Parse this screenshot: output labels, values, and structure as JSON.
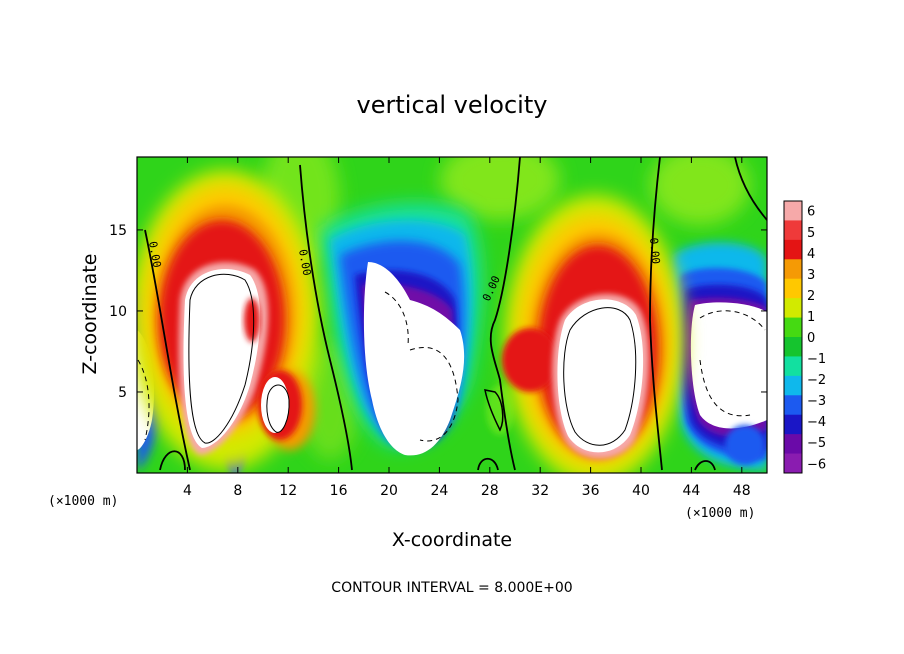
{
  "chart_data": {
    "type": "heatmap",
    "title": "vertical velocity",
    "xlabel": "X-coordinate",
    "ylabel": "Z-coordinate",
    "x_unit_left": "(×1000 m)",
    "x_unit_right": "(×1000 m)",
    "xlim": [
      0,
      50
    ],
    "ylim": [
      0,
      19.5
    ],
    "xticks": [
      4,
      8,
      12,
      16,
      20,
      24,
      28,
      32,
      36,
      40,
      44,
      48
    ],
    "yticks": [
      5,
      10,
      15
    ],
    "colorbar": {
      "ticks": [
        6,
        5,
        4,
        3,
        2,
        1,
        0,
        -1,
        -2,
        -3,
        -4,
        -5,
        -6
      ],
      "colors": [
        "#f6a9a9",
        "#ef3a3a",
        "#e41414",
        "#f59a05",
        "#ffc800",
        "#d2ea00",
        "#45da12",
        "#15c42e",
        "#12e0a0",
        "#0fb8ec",
        "#1c5af0",
        "#1a16c6",
        "#6a0aa8",
        "#8a1cb0"
      ]
    },
    "zero_contour_label": "0.00",
    "updrafts": [
      {
        "x": 7.5,
        "z": 8.0,
        "peak": "above 6"
      },
      {
        "x": 36.0,
        "z": 6.5,
        "peak": "above 6"
      }
    ],
    "downdrafts": [
      {
        "x": 22.0,
        "z": 7.0,
        "peak": "below -6"
      },
      {
        "x": 46.0,
        "z": 6.0,
        "peak": "below -6"
      },
      {
        "x": 1.0,
        "z": 5.0,
        "peak": "below -6"
      }
    ],
    "contour_interval_text": "CONTOUR INTERVAL = 8.000E+00"
  }
}
